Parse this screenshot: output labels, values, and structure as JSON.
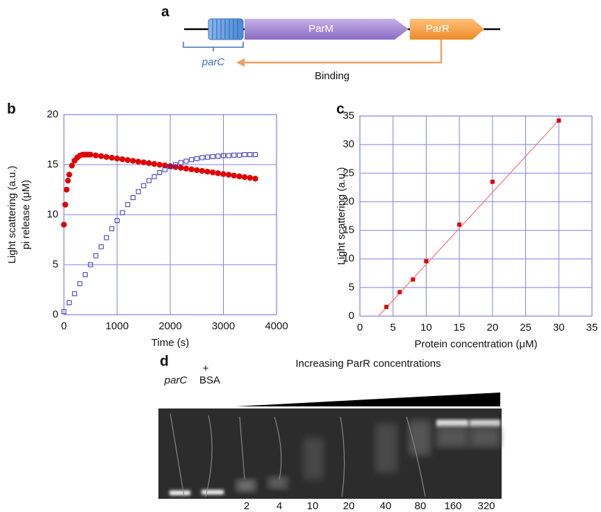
{
  "panel_a": {
    "label": "a",
    "genes": [
      "ParM",
      "ParR"
    ],
    "site": "parC",
    "arrow_label": "Binding"
  },
  "chart_data": [
    {
      "type": "scatter",
      "panel_label": "b",
      "xlabel": "Time (s)",
      "ylabel": [
        "Light scattering (a.u.)",
        "pi release (μM)"
      ],
      "xlim": [
        0,
        4000
      ],
      "ylim": [
        0,
        20
      ],
      "xticks": [
        0,
        1000,
        2000,
        3000,
        4000
      ],
      "yticks": [
        0,
        5,
        10,
        15,
        20
      ],
      "grid": true,
      "grid_color": "#7f7fe0",
      "series": [
        {
          "marker": "circle",
          "filled": true,
          "color": "#e00000",
          "x": [
            0,
            25,
            50,
            75,
            100,
            150,
            200,
            250,
            300,
            350,
            400,
            450,
            500,
            600,
            700,
            800,
            900,
            1000,
            1100,
            1200,
            1300,
            1400,
            1500,
            1600,
            1700,
            1800,
            1900,
            2000,
            2100,
            2200,
            2300,
            2400,
            2500,
            2600,
            2700,
            2800,
            2900,
            3000,
            3100,
            3200,
            3300,
            3400,
            3500,
            3600
          ],
          "values": [
            9.0,
            11.0,
            12.5,
            13.4,
            14.0,
            14.9,
            15.4,
            15.7,
            15.9,
            16.0,
            16.0,
            16.0,
            16.0,
            15.92,
            15.85,
            15.77,
            15.69,
            15.61,
            15.54,
            15.46,
            15.38,
            15.3,
            15.23,
            15.15,
            15.07,
            14.99,
            14.92,
            14.84,
            14.76,
            14.68,
            14.61,
            14.53,
            14.45,
            14.37,
            14.3,
            14.22,
            14.14,
            14.06,
            13.99,
            13.91,
            13.83,
            13.75,
            13.68,
            13.6
          ]
        },
        {
          "marker": "square",
          "filled": false,
          "color": "#3030b8",
          "x": [
            0,
            100,
            200,
            300,
            400,
            500,
            600,
            700,
            800,
            900,
            1000,
            1100,
            1200,
            1300,
            1400,
            1500,
            1600,
            1700,
            1800,
            1900,
            2000,
            2100,
            2200,
            2300,
            2400,
            2500,
            2600,
            2700,
            2800,
            2900,
            3000,
            3100,
            3200,
            3300,
            3400,
            3500,
            3600
          ],
          "values": [
            0.3,
            1.2,
            2.1,
            3.1,
            4.0,
            5.0,
            5.9,
            6.8,
            7.7,
            8.6,
            9.4,
            10.2,
            11.0,
            11.7,
            12.3,
            12.9,
            13.4,
            13.8,
            14.2,
            14.5,
            14.8,
            15.0,
            15.2,
            15.35,
            15.5,
            15.6,
            15.7,
            15.75,
            15.8,
            15.85,
            15.9,
            15.9,
            15.95,
            15.95,
            16.0,
            16.0,
            16.0
          ]
        }
      ]
    },
    {
      "type": "scatter",
      "panel_label": "c",
      "xlabel": "Protein concentration (μM)",
      "ylabel": [
        "Light scattering (a.u.)"
      ],
      "xlim": [
        0,
        35
      ],
      "ylim": [
        0,
        35
      ],
      "xticks": [
        0,
        5,
        10,
        15,
        20,
        25,
        30,
        35
      ],
      "yticks": [
        0,
        5,
        10,
        15,
        20,
        25,
        30,
        35
      ],
      "grid": true,
      "grid_color": "#7f7fe0",
      "series": [
        {
          "marker": "square",
          "filled": true,
          "color": "#e00000",
          "x": [
            4,
            6,
            8,
            10,
            15,
            20,
            30
          ],
          "values": [
            1.6,
            4.2,
            6.4,
            9.6,
            16.0,
            23.5,
            34.2
          ]
        }
      ],
      "trendline": {
        "color": "#f08080",
        "x": [
          2.8,
          30.2
        ],
        "values": [
          0,
          34.5
        ]
      }
    }
  ],
  "panel_d": {
    "label": "d",
    "control_lane": "parC",
    "bsa_lane_lines": [
      "+",
      "BSA"
    ],
    "title": "Increasing ParR concentrations",
    "concentrations": [
      2,
      4,
      10,
      20,
      40,
      80,
      160,
      320
    ]
  }
}
